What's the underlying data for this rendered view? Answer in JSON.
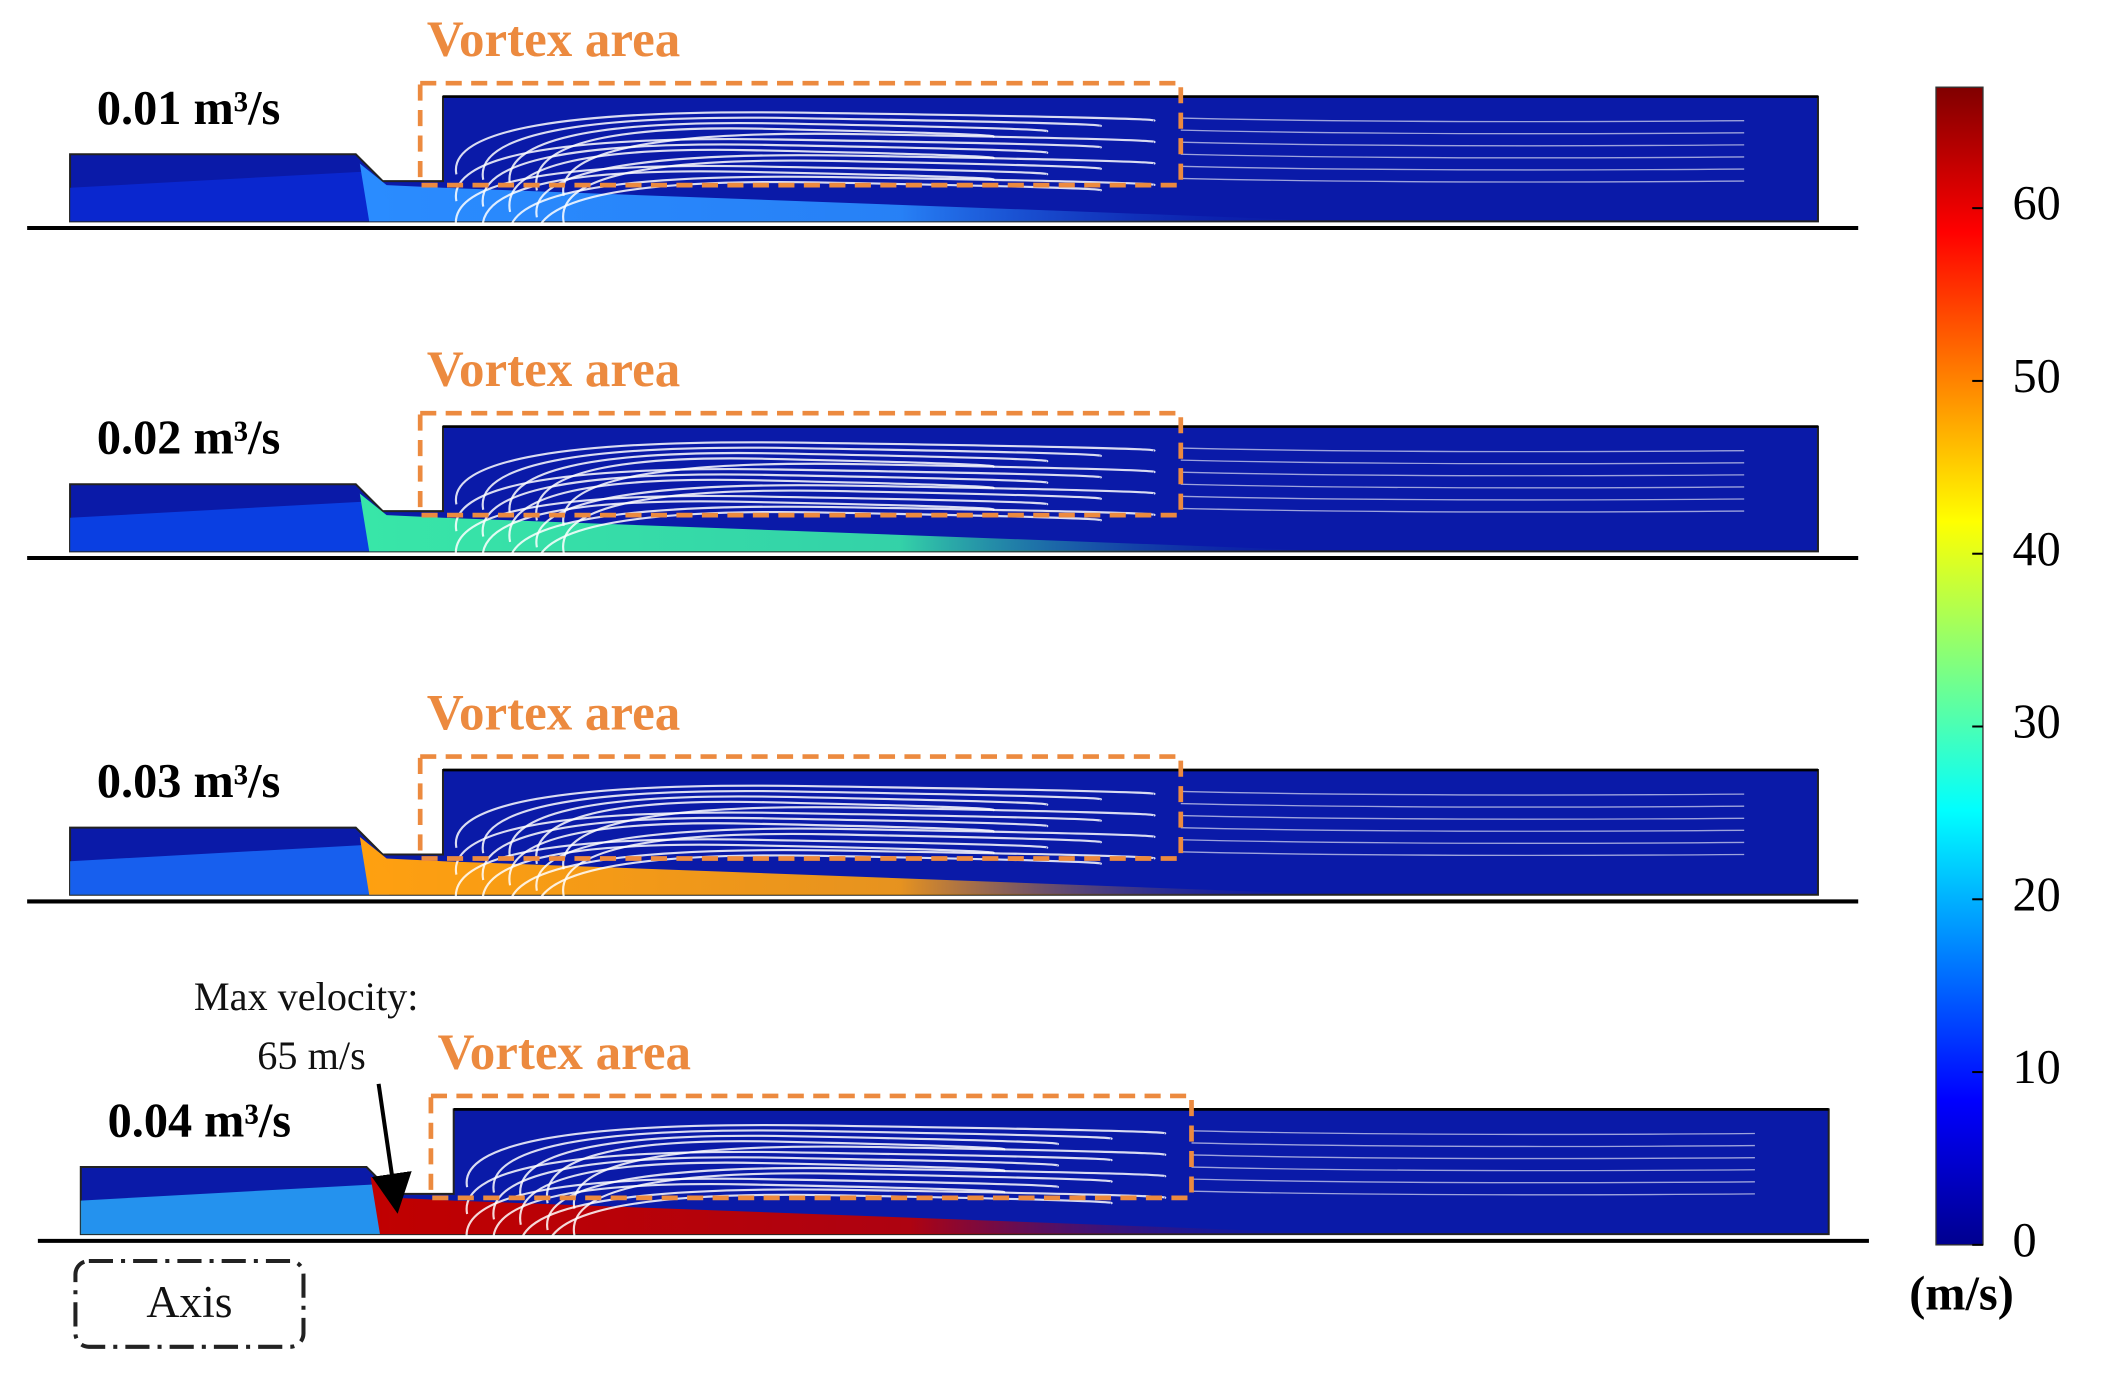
{
  "panels": [
    {
      "flow_rate": "0.01 m³/s",
      "annotation": "Vortex area"
    },
    {
      "flow_rate": "0.02 m³/s",
      "annotation": "Vortex area"
    },
    {
      "flow_rate": "0.03 m³/s",
      "annotation": "Vortex area"
    },
    {
      "flow_rate": "0.04 m³/s",
      "annotation": "Vortex area"
    }
  ],
  "max_velocity_note": {
    "line1": "Max velocity:",
    "line2": "65 m/s"
  },
  "axis_label": "Axis",
  "colorbar": {
    "unit": "(m/s)",
    "lim": [
      0,
      67
    ],
    "ticks": [
      0,
      10,
      20,
      30,
      40,
      50,
      60
    ]
  }
}
